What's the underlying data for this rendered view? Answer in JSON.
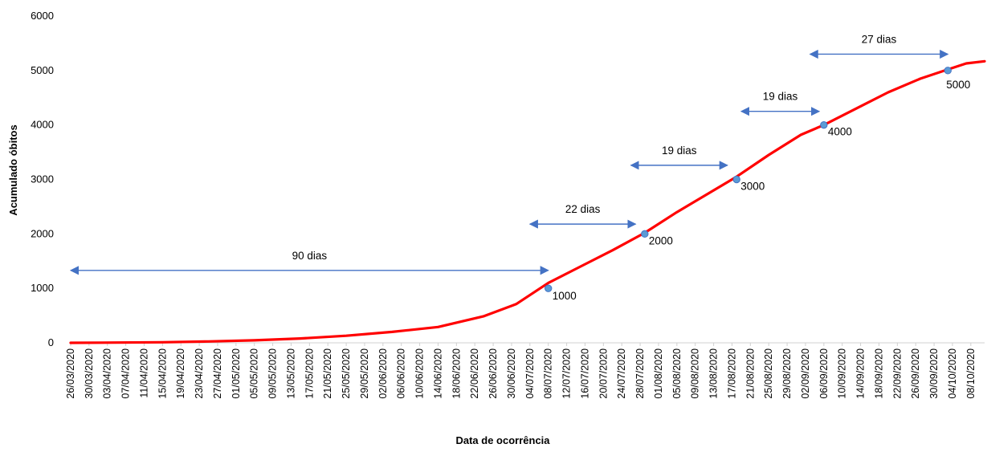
{
  "chart_data": {
    "type": "line",
    "title": "",
    "xlabel": "Data de ocorrência",
    "ylabel": "Acumulado óbitos",
    "ylim": [
      0,
      6000
    ],
    "yticks": [
      0,
      1000,
      2000,
      3000,
      4000,
      5000,
      6000
    ],
    "xlim": [
      "2020-03-26",
      "2020-10-11"
    ],
    "xtick_labels": [
      "26/03/2020",
      "30/03/2020",
      "03/04/2020",
      "07/04/2020",
      "11/04/2020",
      "15/04/2020",
      "19/04/2020",
      "23/04/2020",
      "27/04/2020",
      "01/05/2020",
      "05/05/2020",
      "09/05/2020",
      "13/05/2020",
      "17/05/2020",
      "21/05/2020",
      "25/05/2020",
      "29/05/2020",
      "02/06/2020",
      "06/06/2020",
      "10/06/2020",
      "14/06/2020",
      "18/06/2020",
      "22/06/2020",
      "26/06/2020",
      "30/06/2020",
      "04/07/2020",
      "08/07/2020",
      "12/07/2020",
      "16/07/2020",
      "20/07/2020",
      "24/07/2020",
      "28/07/2020",
      "01/08/2020",
      "05/08/2020",
      "09/08/2020",
      "13/08/2020",
      "17/08/2020",
      "21/08/2020",
      "25/08/2020",
      "29/08/2020",
      "02/09/2020",
      "06/09/2020",
      "10/09/2020",
      "14/09/2020",
      "18/09/2020",
      "22/09/2020",
      "26/09/2020",
      "30/09/2020",
      "04/10/2020",
      "08/10/2020"
    ],
    "grid": false,
    "legend": "none",
    "series": [
      {
        "color": "#ff0000",
        "points": [
          [
            "2020-03-26",
            0
          ],
          [
            "2020-04-05",
            5
          ],
          [
            "2020-04-15",
            10
          ],
          [
            "2020-04-25",
            25
          ],
          [
            "2020-05-05",
            45
          ],
          [
            "2020-05-15",
            80
          ],
          [
            "2020-05-25",
            130
          ],
          [
            "2020-06-04",
            200
          ],
          [
            "2020-06-14",
            290
          ],
          [
            "2020-06-24",
            490
          ],
          [
            "2020-07-01",
            710
          ],
          [
            "2020-07-08",
            1100
          ],
          [
            "2020-07-15",
            1400
          ],
          [
            "2020-07-22",
            1700
          ],
          [
            "2020-07-29",
            2020
          ],
          [
            "2020-08-05",
            2400
          ],
          [
            "2020-08-12",
            2750
          ],
          [
            "2020-08-18",
            3050
          ],
          [
            "2020-08-25",
            3450
          ],
          [
            "2020-09-01",
            3820
          ],
          [
            "2020-09-06",
            4000
          ],
          [
            "2020-09-13",
            4300
          ],
          [
            "2020-09-20",
            4600
          ],
          [
            "2020-09-27",
            4850
          ],
          [
            "2020-10-03",
            5020
          ],
          [
            "2020-10-07",
            5130
          ],
          [
            "2020-10-11",
            5170
          ]
        ]
      }
    ],
    "milestones": [
      {
        "date": "2020-07-08",
        "value": 1000,
        "label": "1000"
      },
      {
        "date": "2020-07-29",
        "value": 2000,
        "label": "2000"
      },
      {
        "date": "2020-08-18",
        "value": 3000,
        "label": "3000"
      },
      {
        "date": "2020-09-06",
        "value": 4000,
        "label": "4000"
      },
      {
        "date": "2020-10-03",
        "value": 5000,
        "label": "5000"
      }
    ],
    "interval_annotations": [
      {
        "label": "90 dias",
        "from": "2020-03-26",
        "to": "2020-07-08",
        "level": 1330
      },
      {
        "label": "22 dias",
        "from": "2020-07-04",
        "to": "2020-07-27",
        "level": 2180
      },
      {
        "label": "19 dias",
        "from": "2020-07-26",
        "to": "2020-08-16",
        "level": 3260
      },
      {
        "label": "19 dias",
        "from": "2020-08-19",
        "to": "2020-09-05",
        "level": 4250
      },
      {
        "label": "27 dias",
        "from": "2020-09-03",
        "to": "2020-10-03",
        "level": 5300
      }
    ]
  }
}
